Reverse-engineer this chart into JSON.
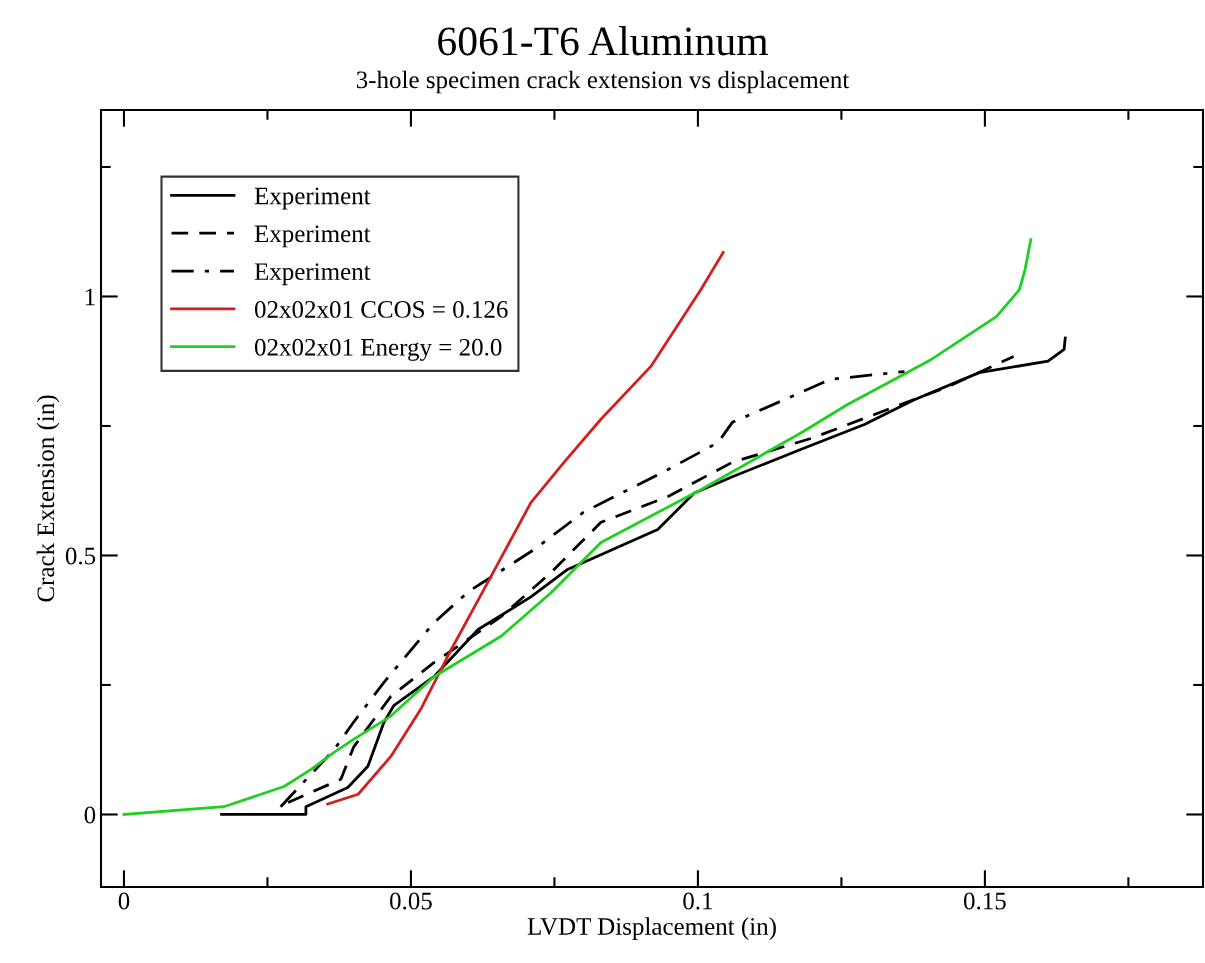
{
  "chart_data": {
    "type": "line",
    "title": "6061-T6 Aluminum",
    "subtitle": "3-hole specimen crack extension vs displacement",
    "xlabel": "LVDT Displacement (in)",
    "ylabel": "Crack Extension (in)",
    "xlim": [
      -0.004,
      0.188
    ],
    "ylim": [
      -0.14,
      1.36
    ],
    "xticks": [
      0,
      {
        "value": 0.025,
        "label": null
      },
      0.05,
      {
        "value": 0.075,
        "label": null
      },
      0.1,
      {
        "value": 0.125,
        "label": null
      },
      0.15,
      {
        "value": 0.175,
        "label": null
      }
    ],
    "yticks": [
      0,
      {
        "value": 0.25,
        "label": null
      },
      0.5,
      {
        "value": 0.75,
        "label": null
      },
      1,
      {
        "value": 1.25,
        "label": null
      }
    ],
    "grid": false,
    "legend": "top left",
    "marker": "none",
    "series": [
      {
        "name": "Experiment",
        "color": "#000000",
        "line_style": "solid",
        "x": [
          0.017,
          0.0317,
          0.0317,
          0.039,
          0.0425,
          0.0453,
          0.047,
          0.054,
          0.0617,
          0.0709,
          0.0773,
          0.093,
          0.0993,
          0.106,
          0.118,
          0.129,
          0.1376,
          0.149,
          0.161,
          0.1638,
          0.164
        ],
        "values": [
          0,
          0,
          0.015,
          0.052,
          0.093,
          0.178,
          0.21,
          0.266,
          0.357,
          0.42,
          0.473,
          0.55,
          0.62,
          0.652,
          0.705,
          0.753,
          0.8,
          0.853,
          0.875,
          0.898,
          0.92
        ]
      },
      {
        "name": "Experiment",
        "color": "#000000",
        "line_style": "dashed",
        "x": [
          0.0286,
          0.0378,
          0.04,
          0.0465,
          0.054,
          0.0657,
          0.0744,
          0.0831,
          0.0948,
          0.106,
          0.12,
          0.1436,
          0.155
        ],
        "values": [
          0.023,
          0.068,
          0.13,
          0.228,
          0.293,
          0.382,
          0.467,
          0.564,
          0.614,
          0.68,
          0.727,
          0.826,
          0.884
        ]
      },
      {
        "name": "Experiment",
        "color": "#000000",
        "line_style": "dashdot",
        "x": [
          0.0273,
          0.0366,
          0.04,
          0.0453,
          0.054,
          0.06,
          0.0714,
          0.08,
          0.0948,
          0.1035,
          0.106,
          0.118,
          0.123,
          0.136
        ],
        "values": [
          0.015,
          0.125,
          0.178,
          0.255,
          0.37,
          0.43,
          0.511,
          0.583,
          0.666,
          0.718,
          0.757,
          0.815,
          0.84,
          0.855
        ]
      },
      {
        "name": "02x02x01 CCOS = 0.126",
        "color": "#d02020",
        "line_style": "solid",
        "x": [
          0.0355,
          0.0408,
          0.0465,
          0.0517,
          0.057,
          0.0627,
          0.0709,
          0.0767,
          0.0831,
          0.0918,
          0.1005,
          0.1044
        ],
        "values": [
          0.02,
          0.039,
          0.112,
          0.203,
          0.318,
          0.434,
          0.602,
          0.68,
          0.763,
          0.865,
          1.013,
          1.085
        ]
      },
      {
        "name": "02x02x01 Energy = 20.0",
        "color": "#20d020",
        "line_style": "solid",
        "x": [
          0,
          0.0174,
          0.0279,
          0.0326,
          0.0366,
          0.04,
          0.0465,
          0.054,
          0.0657,
          0.0744,
          0.0831,
          0.1005,
          0.118,
          0.126,
          0.1406,
          0.152,
          0.156,
          0.157,
          0.158
        ],
        "values": [
          0,
          0.015,
          0.054,
          0.087,
          0.12,
          0.145,
          0.19,
          0.266,
          0.344,
          0.428,
          0.525,
          0.627,
          0.737,
          0.791,
          0.878,
          0.961,
          1.013,
          1.052,
          1.11
        ]
      }
    ]
  }
}
